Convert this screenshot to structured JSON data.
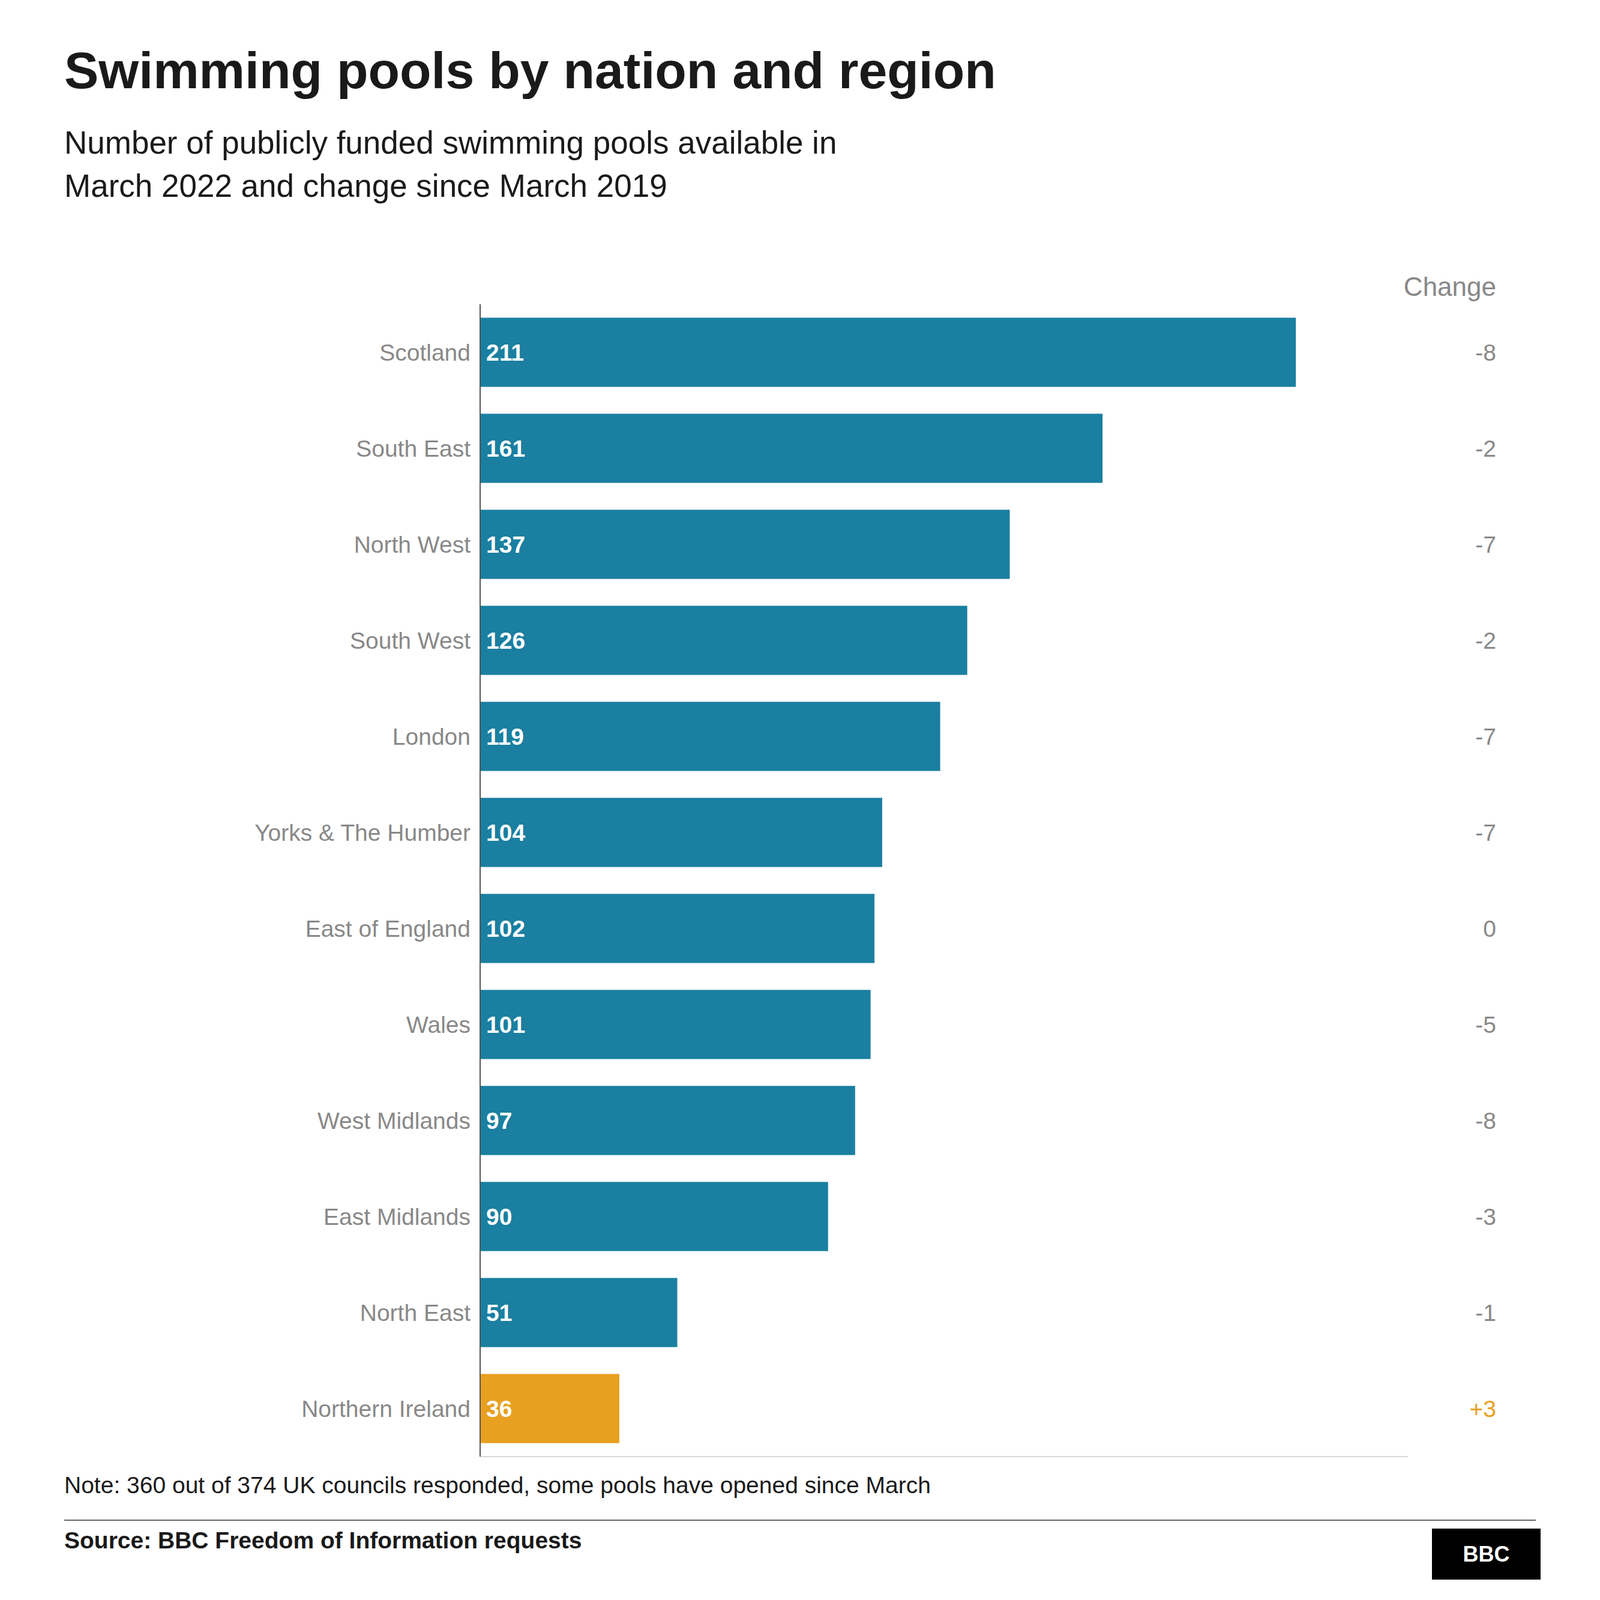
{
  "chart_data": {
    "type": "bar",
    "orientation": "horizontal",
    "title": "Swimming pools by nation and region",
    "subtitle": "Number of publicly funded swimming pools available in\nMarch 2022 and change since March 2019",
    "categories": [
      "Scotland",
      "South East",
      "North West",
      "South West",
      "London",
      "Yorks & The Humber",
      "East of England",
      "Wales",
      "West Midlands",
      "East Midlands",
      "North East",
      "Northern Ireland"
    ],
    "values": [
      211,
      161,
      137,
      126,
      119,
      104,
      102,
      101,
      97,
      90,
      51,
      36
    ],
    "colors": [
      "#1a7fa0",
      "#1a7fa0",
      "#1a7fa0",
      "#1a7fa0",
      "#1a7fa0",
      "#1a7fa0",
      "#1a7fa0",
      "#1a7fa0",
      "#1a7fa0",
      "#1a7fa0",
      "#1a7fa0",
      "#e8a020"
    ],
    "xlim": [
      0,
      240
    ],
    "data_labels": true,
    "tick_labels": "y",
    "grid": false,
    "change": {
      "label": "Change",
      "values": [
        -8,
        -2,
        -7,
        -2,
        -7,
        -7,
        0,
        -5,
        -8,
        -3,
        -1,
        3
      ],
      "value_labels": [
        "-8",
        "-2",
        "-7",
        "-2",
        "-7",
        "-7",
        "0",
        "-5",
        "-8",
        "-3",
        "-1",
        "+3"
      ],
      "colors": [
        "#888888",
        "#888888",
        "#888888",
        "#888888",
        "#888888",
        "#888888",
        "#888888",
        "#888888",
        "#888888",
        "#888888",
        "#888888",
        "#e8a020"
      ]
    },
    "note": "Note: 360 out of 374 UK councils responded, some pools have opened since March",
    "source": "Source: BBC Freedom of Information requests",
    "logo": "BBC"
  }
}
